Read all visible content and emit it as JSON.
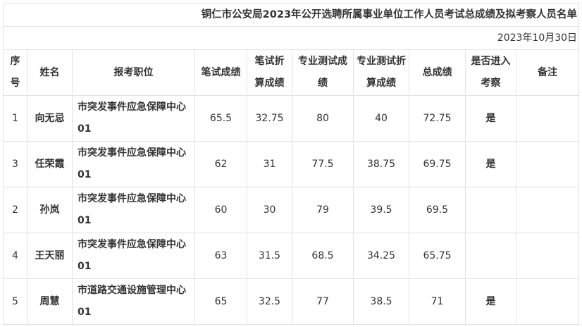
{
  "title": "铜仁市公安局2023年公开选聘所属事业单位工作人员考试总成绩及拟考察人员名单",
  "date": "2023年10月30日",
  "headers": [
    "序号",
    "姓名",
    "报考职位",
    "笔试成绩",
    "笔试折算成绩",
    "专业测试成绩",
    "专业测试折算成绩",
    "总成绩",
    "是否进入考察",
    "备注"
  ],
  "rows": [
    {
      "no": "1",
      "name": "向无忌",
      "position": "市突发事件应急保障中心01",
      "written": "65.5",
      "written_conv": "32.75",
      "pro": "80",
      "pro_conv": "40",
      "total": "72.75",
      "inspect": "是",
      "note": ""
    },
    {
      "no": "3",
      "name": "任荣霞",
      "position": "市突发事件应急保障中心01",
      "written": "62",
      "written_conv": "31",
      "pro": "77.5",
      "pro_conv": "38.75",
      "total": "69.75",
      "inspect": "是",
      "note": ""
    },
    {
      "no": "2",
      "name": "孙岚",
      "position": "市突发事件应急保障中心01",
      "written": "60",
      "written_conv": "30",
      "pro": "79",
      "pro_conv": "39.5",
      "total": "69.5",
      "inspect": "",
      "note": ""
    },
    {
      "no": "4",
      "name": "王天丽",
      "position": "市突发事件应急保障中心01",
      "written": "63",
      "written_conv": "31.5",
      "pro": "68.5",
      "pro_conv": "34.25",
      "total": "65.75",
      "inspect": "",
      "note": ""
    },
    {
      "no": "5",
      "name": "周慧",
      "position": "市道路交通设施管理中心01",
      "written": "65",
      "written_conv": "32.5",
      "pro": "77",
      "pro_conv": "38.5",
      "total": "71",
      "inspect": "是",
      "note": ""
    }
  ]
}
